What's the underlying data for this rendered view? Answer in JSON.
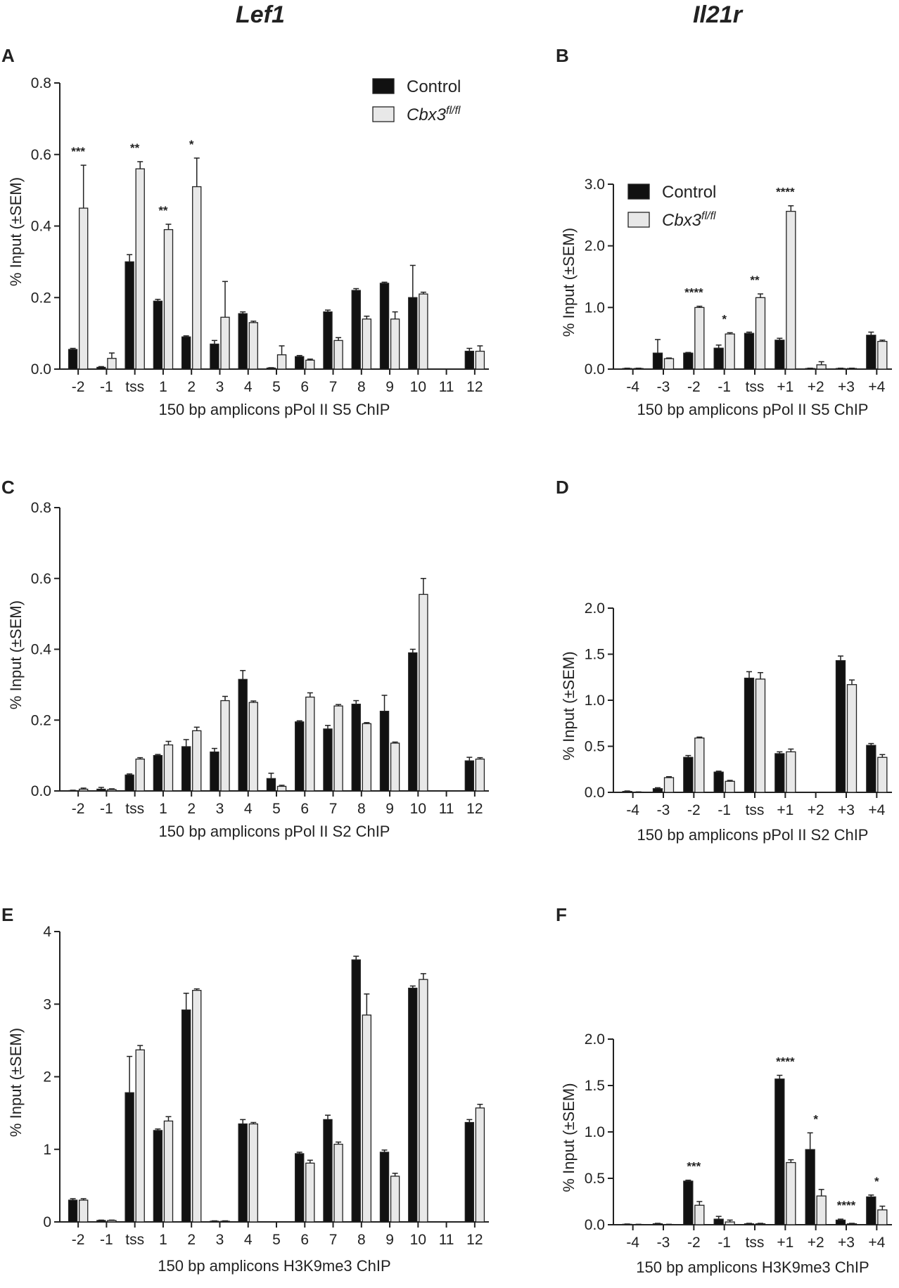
{
  "figure": {
    "left_title": "Lef1",
    "right_title": "Il21r",
    "legend": [
      {
        "label": "Control",
        "color": "#111111"
      },
      {
        "label": "Cbx3",
        "superscript": "fl/fl",
        "color": "#e8e8e8"
      }
    ],
    "colors": {
      "control": "#111111",
      "cbx3": "#e8e8e8",
      "axis": "#222222"
    }
  },
  "chart_data": [
    {
      "panel": "A",
      "type": "bar",
      "title": "",
      "xlabel": "150 bp amplicons pPol II S5 ChIP",
      "ylabel": "% Input (±SEM)",
      "ylim": [
        0,
        0.8
      ],
      "yticks": [
        "0.0",
        "0.2",
        "0.4",
        "0.6",
        "0.8"
      ],
      "categories": [
        "-2",
        "-1",
        "tss",
        "1",
        "2",
        "3",
        "4",
        "5",
        "6",
        "7",
        "8",
        "9",
        "10",
        "11",
        "12"
      ],
      "series": [
        {
          "name": "Control",
          "values": [
            0.055,
            0.005,
            0.3,
            0.19,
            0.09,
            0.07,
            0.155,
            0.003,
            0.035,
            0.16,
            0.22,
            0.24,
            0.2,
            0,
            0.05
          ],
          "errors": [
            0.003,
            0.002,
            0.02,
            0.005,
            0.003,
            0.01,
            0.005,
            0.001,
            0.003,
            0.005,
            0.005,
            0.003,
            0.09,
            0,
            0.008
          ]
        },
        {
          "name": "Cbx3 fl/fl",
          "values": [
            0.45,
            0.03,
            0.56,
            0.39,
            0.51,
            0.145,
            0.13,
            0.04,
            0.025,
            0.08,
            0.14,
            0.14,
            0.21,
            0,
            0.05
          ],
          "errors": [
            0.12,
            0.015,
            0.02,
            0.015,
            0.08,
            0.1,
            0.004,
            0.025,
            0.003,
            0.008,
            0.008,
            0.02,
            0.005,
            0,
            0.015
          ]
        }
      ],
      "annotations": [
        {
          "category": "-2",
          "text": "***"
        },
        {
          "category": "tss",
          "text": "**"
        },
        {
          "category": "1",
          "text": "**"
        },
        {
          "category": "2",
          "text": "*"
        }
      ],
      "legend_position": "top-right"
    },
    {
      "panel": "B",
      "type": "bar",
      "title": "",
      "xlabel": "150 bp amplicons pPol II S5 ChIP",
      "ylabel": "% Input (±SEM)",
      "ylim": [
        0,
        3.0
      ],
      "yticks": [
        "0.0",
        "1.0",
        "2.0",
        "3.0"
      ],
      "categories": [
        "-4",
        "-3",
        "-2",
        "-1",
        "tss",
        "+1",
        "+2",
        "+3",
        "+4"
      ],
      "series": [
        {
          "name": "Control",
          "values": [
            0.01,
            0.26,
            0.26,
            0.34,
            0.58,
            0.47,
            0.01,
            0.01,
            0.55
          ],
          "errors": [
            0.005,
            0.22,
            0.01,
            0.05,
            0.02,
            0.03,
            0.005,
            0.005,
            0.05
          ]
        },
        {
          "name": "Cbx3 fl/fl",
          "values": [
            0.01,
            0.17,
            1.0,
            0.57,
            1.16,
            2.56,
            0.07,
            0.01,
            0.45
          ],
          "errors": [
            0.005,
            0.01,
            0.02,
            0.02,
            0.06,
            0.09,
            0.05,
            0.005,
            0.02
          ]
        }
      ],
      "annotations": [
        {
          "category": "-2",
          "text": "****"
        },
        {
          "category": "-1",
          "text": "*"
        },
        {
          "category": "tss",
          "text": "**"
        },
        {
          "category": "+1",
          "text": "****"
        }
      ],
      "legend_position": "top-left"
    },
    {
      "panel": "C",
      "type": "bar",
      "title": "",
      "xlabel": "150 bp amplicons pPol II S2 ChIP",
      "ylabel": "% Input (±SEM)",
      "ylim": [
        0,
        0.8
      ],
      "yticks": [
        "0.0",
        "0.2",
        "0.4",
        "0.6",
        "0.8"
      ],
      "categories": [
        "-2",
        "-1",
        "tss",
        "1",
        "2",
        "3",
        "4",
        "5",
        "6",
        "7",
        "8",
        "9",
        "10",
        "11",
        "12"
      ],
      "series": [
        {
          "name": "Control",
          "values": [
            0.001,
            0.005,
            0.045,
            0.1,
            0.125,
            0.11,
            0.315,
            0.035,
            0.195,
            0.175,
            0.245,
            0.225,
            0.39,
            0,
            0.085
          ],
          "errors": [
            0.001,
            0.005,
            0.003,
            0.003,
            0.02,
            0.01,
            0.025,
            0.015,
            0.003,
            0.01,
            0.01,
            0.045,
            0.01,
            0,
            0.01
          ]
        },
        {
          "name": "Cbx3 fl/fl",
          "values": [
            0.005,
            0.004,
            0.09,
            0.13,
            0.17,
            0.255,
            0.25,
            0.013,
            0.265,
            0.24,
            0.19,
            0.135,
            0.555,
            0,
            0.09
          ],
          "errors": [
            0.003,
            0.002,
            0.004,
            0.01,
            0.01,
            0.012,
            0.004,
            0.003,
            0.012,
            0.004,
            0.003,
            0.003,
            0.045,
            0,
            0.004
          ]
        }
      ],
      "annotations": [],
      "legend_position": "none"
    },
    {
      "panel": "D",
      "type": "bar",
      "title": "",
      "xlabel": "150 bp amplicons pPol II S2 ChIP",
      "ylabel": "% Input (±SEM)",
      "ylim": [
        0,
        2.0
      ],
      "yticks": [
        "0.0",
        "0.5",
        "1.0",
        "1.5",
        "2.0"
      ],
      "categories": [
        "-4",
        "-3",
        "-2",
        "-1",
        "tss",
        "+1",
        "+2",
        "+3",
        "+4"
      ],
      "series": [
        {
          "name": "Control",
          "values": [
            0.01,
            0.04,
            0.38,
            0.22,
            1.24,
            0.42,
            0,
            1.43,
            0.51
          ],
          "errors": [
            0.005,
            0.01,
            0.02,
            0.01,
            0.07,
            0.02,
            0,
            0.05,
            0.02
          ]
        },
        {
          "name": "Cbx3 fl/fl",
          "values": [
            0.003,
            0.16,
            0.59,
            0.12,
            1.23,
            0.44,
            0,
            1.17,
            0.38
          ],
          "errors": [
            0.002,
            0.01,
            0.01,
            0.01,
            0.07,
            0.03,
            0,
            0.05,
            0.03
          ]
        }
      ],
      "annotations": [],
      "legend_position": "none"
    },
    {
      "panel": "E",
      "type": "bar",
      "title": "",
      "xlabel": "150 bp amplicons H3K9me3 ChIP",
      "ylabel": "% Input (±SEM)",
      "ylim": [
        0,
        4
      ],
      "yticks": [
        "0",
        "1",
        "2",
        "3",
        "4"
      ],
      "categories": [
        "-2",
        "-1",
        "tss",
        "1",
        "2",
        "3",
        "4",
        "5",
        "6",
        "7",
        "8",
        "9",
        "10",
        "11",
        "12"
      ],
      "series": [
        {
          "name": "Control",
          "values": [
            0.3,
            0.02,
            1.78,
            1.26,
            2.92,
            0.01,
            1.35,
            0,
            0.94,
            1.41,
            3.61,
            0.96,
            3.22,
            0,
            1.37
          ],
          "errors": [
            0.02,
            0.005,
            0.5,
            0.02,
            0.23,
            0.005,
            0.06,
            0,
            0.02,
            0.06,
            0.05,
            0.03,
            0.03,
            0,
            0.04
          ]
        },
        {
          "name": "Cbx3 fl/fl",
          "values": [
            0.3,
            0.02,
            2.37,
            1.39,
            3.19,
            0.01,
            1.35,
            0,
            0.81,
            1.07,
            2.85,
            0.63,
            3.34,
            0,
            1.57
          ],
          "errors": [
            0.02,
            0.005,
            0.06,
            0.06,
            0.02,
            0.005,
            0.02,
            0,
            0.04,
            0.03,
            0.29,
            0.04,
            0.08,
            0,
            0.05
          ]
        }
      ],
      "annotations": [],
      "legend_position": "none"
    },
    {
      "panel": "F",
      "type": "bar",
      "title": "",
      "xlabel": "150 bp amplicons H3K9me3 ChIP",
      "ylabel": "% Input (±SEM)",
      "ylim": [
        0,
        2.0
      ],
      "yticks": [
        "0.0",
        "0.5",
        "1.0",
        "1.5",
        "2.0"
      ],
      "categories": [
        "-4",
        "-3",
        "-2",
        "-1",
        "tss",
        "+1",
        "+2",
        "+3",
        "+4"
      ],
      "series": [
        {
          "name": "Control",
          "values": [
            0.005,
            0.01,
            0.47,
            0.06,
            0.01,
            1.57,
            0.81,
            0.05,
            0.3
          ],
          "errors": [
            0.003,
            0.005,
            0.01,
            0.03,
            0.005,
            0.04,
            0.18,
            0.01,
            0.02
          ]
        },
        {
          "name": "Cbx3 fl/fl",
          "values": [
            0.003,
            0.003,
            0.21,
            0.03,
            0.01,
            0.67,
            0.31,
            0.01,
            0.16
          ],
          "errors": [
            0.002,
            0.002,
            0.04,
            0.02,
            0.005,
            0.03,
            0.07,
            0.005,
            0.04
          ]
        }
      ],
      "annotations": [
        {
          "category": "-2",
          "text": "***"
        },
        {
          "category": "+1",
          "text": "****"
        },
        {
          "category": "+2",
          "text": "*"
        },
        {
          "category": "+3",
          "text": "****"
        },
        {
          "category": "+4",
          "text": "*"
        }
      ],
      "legend_position": "none"
    }
  ]
}
